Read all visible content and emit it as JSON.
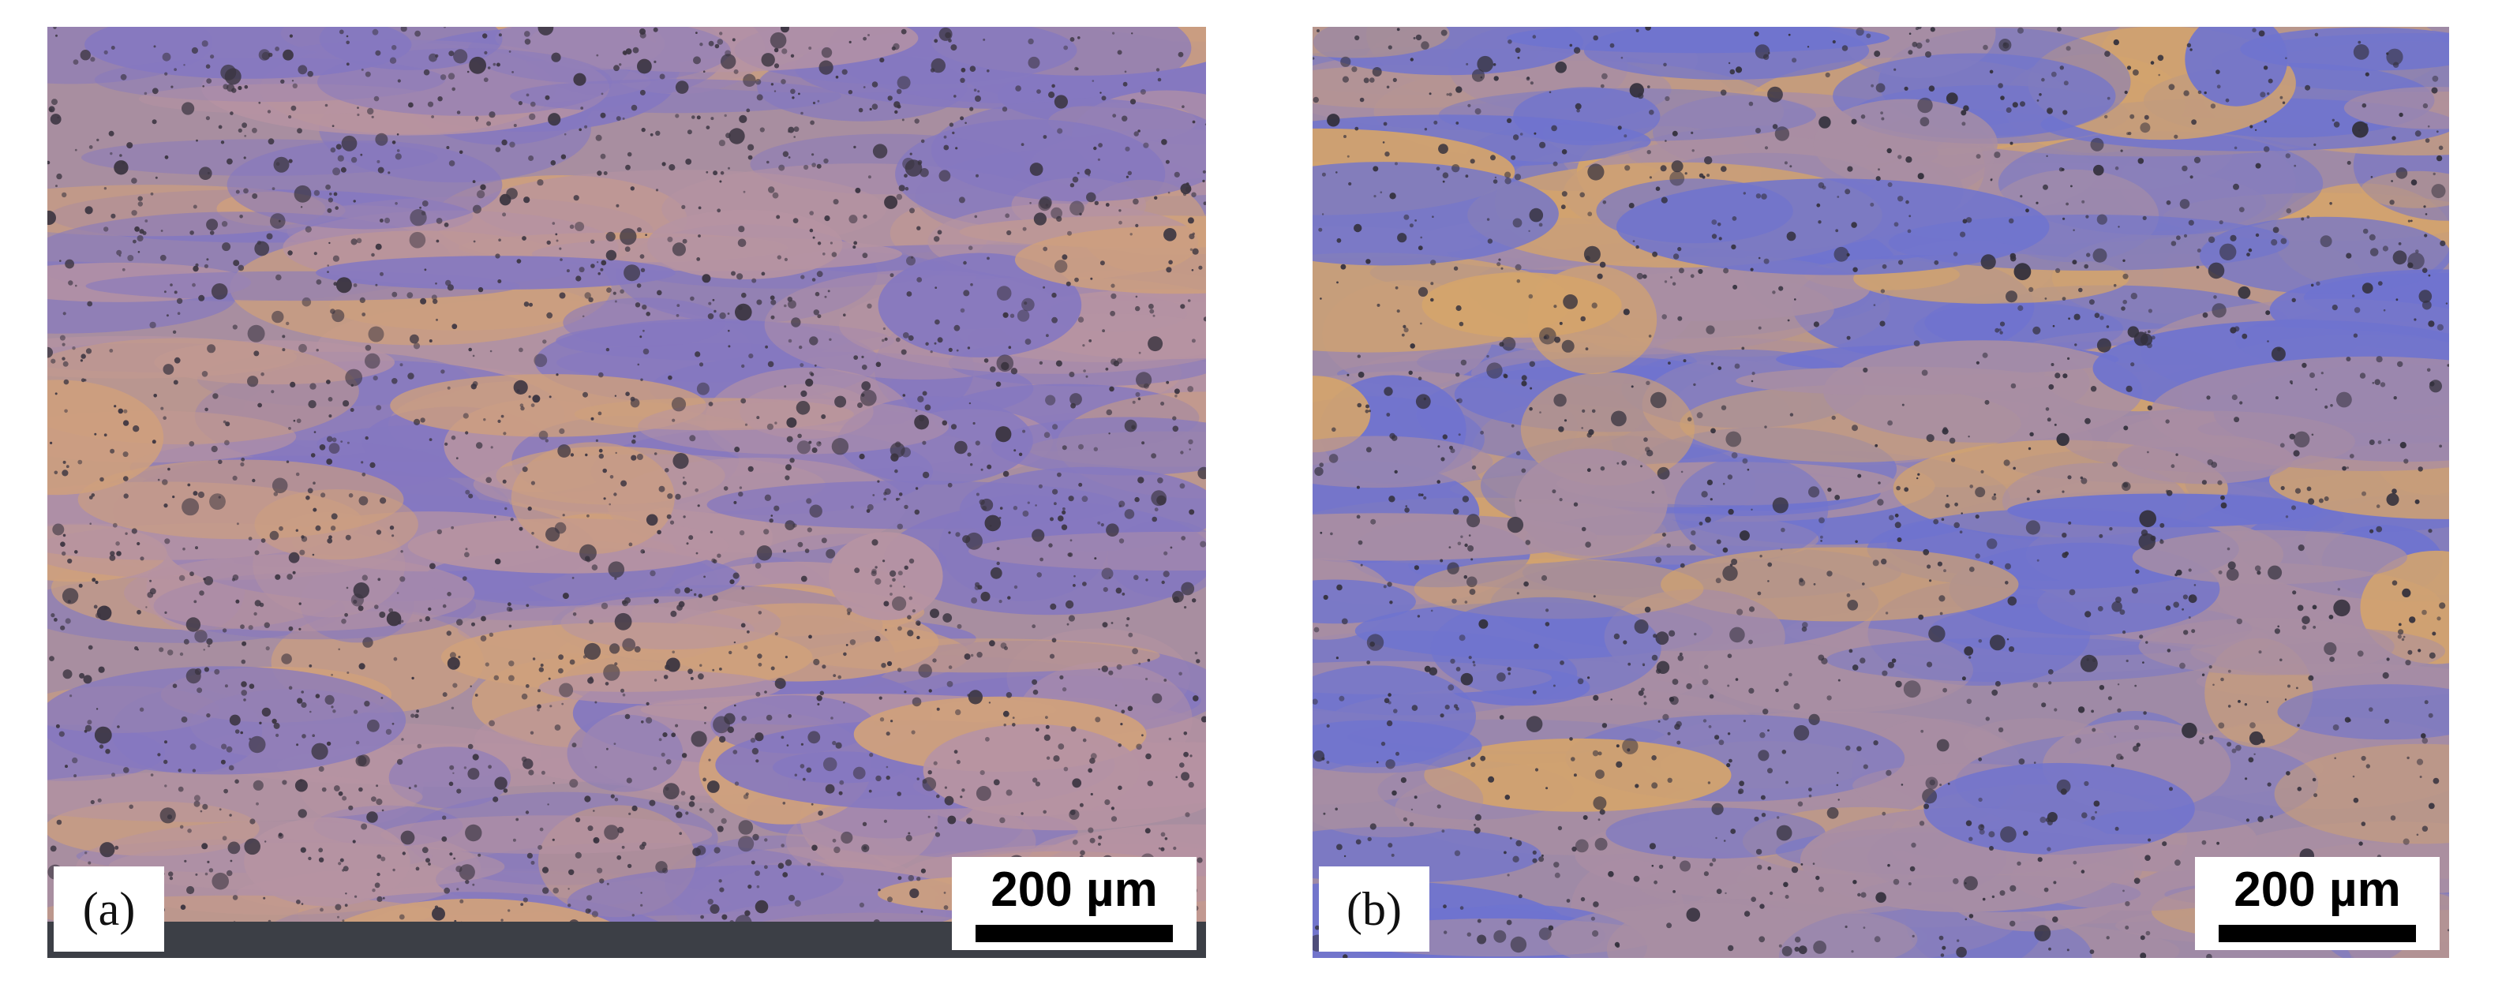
{
  "panels": [
    {
      "label": "(a)",
      "scale_bar": "200 µm",
      "colors": {
        "base": "#a88ea0",
        "pink": "#b693a2",
        "blue": "#8578c0",
        "orange": "#cfa07c",
        "pore": "#3a3440",
        "substrate": "#3c3f46"
      }
    },
    {
      "label": "(b)",
      "scale_bar": "200 µm",
      "colors": {
        "base": "#9f8aa6",
        "pink": "#a98ea3",
        "blue": "#6f73cf",
        "orange": "#d4a46c",
        "pore": "#33303c"
      }
    }
  ]
}
